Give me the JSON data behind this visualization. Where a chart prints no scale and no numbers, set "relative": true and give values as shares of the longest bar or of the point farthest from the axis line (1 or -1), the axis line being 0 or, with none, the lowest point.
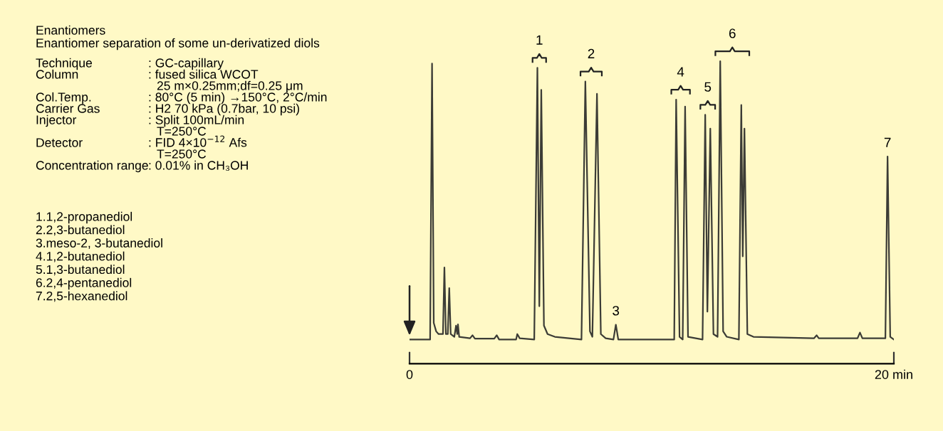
{
  "chart_data": {
    "type": "line",
    "relative": true,
    "title": "Enantiomers",
    "subtitle": "Enantiomer separation of some un-derivatized diols",
    "x": [
      0.0,
      0.85,
      0.93,
      1.0,
      1.1,
      1.2,
      1.38,
      1.44,
      1.5,
      1.58,
      1.64,
      1.7,
      1.85,
      1.92,
      1.97,
      2.0,
      2.05,
      2.5,
      2.6,
      2.7,
      3.5,
      3.6,
      3.7,
      4.4,
      4.45,
      4.55,
      5.15,
      5.28,
      5.36,
      5.44,
      5.55,
      5.7,
      6.0,
      7.1,
      7.26,
      7.45,
      7.55,
      7.74,
      7.9,
      8.1,
      8.42,
      8.52,
      8.62,
      10.93,
      11.01,
      11.15,
      11.28,
      11.38,
      11.5,
      12.1,
      12.21,
      12.3,
      12.42,
      12.55,
      12.72,
      12.83,
      12.95,
      13.1,
      13.6,
      13.7,
      13.76,
      13.83,
      13.95,
      14.2,
      16.7,
      16.81,
      16.9,
      18.5,
      18.6,
      18.7,
      19.65,
      19.74,
      19.85,
      20.0
    ],
    "series": [
      {
        "color": "#3c3c36",
        "values": [
          0.08,
          0.08,
          0.992,
          0.135,
          0.107,
          0.098,
          0.098,
          0.318,
          0.098,
          0.098,
          0.25,
          0.098,
          0.089,
          0.126,
          0.098,
          0.13,
          0.089,
          0.084,
          0.094,
          0.083,
          0.083,
          0.094,
          0.08,
          0.08,
          0.098,
          0.084,
          0.08,
          0.978,
          0.19,
          0.905,
          0.126,
          0.098,
          0.089,
          0.08,
          0.933,
          0.107,
          0.089,
          0.892,
          0.098,
          0.084,
          0.08,
          0.129,
          0.08,
          0.08,
          0.873,
          0.089,
          0.08,
          0.85,
          0.089,
          0.08,
          0.823,
          0.172,
          0.777,
          0.098,
          0.089,
          1.0,
          0.107,
          0.089,
          0.08,
          0.855,
          0.355,
          0.777,
          0.098,
          0.089,
          0.084,
          0.094,
          0.084,
          0.084,
          0.103,
          0.084,
          0.084,
          0.685,
          0.089,
          0.08
        ]
      }
    ],
    "xlim": [
      0,
      20
    ],
    "xticks": [
      0,
      {
        "value": 20,
        "label": "20 min"
      }
    ],
    "grid": false,
    "marker": "none",
    "line_style": "solid",
    "annotations": [
      "Technique : GC-capillary",
      "Column : fused silica WCOT",
      "25 m×0.25mm;df=0.25 μm",
      "Col.Temp. : 80°C (5 min) →150°C, 2°C/min",
      "Carrier Gas : H2 70 kPa (0.7bar, 10 psi)",
      "Injector : Split 100mL/min",
      "T=250°C",
      "Detector : FID 4×10$^{−12}$ Afs",
      "T=250°C",
      "Concentration range : 0.01% in CH₃OH",
      "1.1,2-propanediol",
      "2.2,3-butanediol",
      "3.meso-2, 3-butanediol",
      "4.1,2-butanediol",
      "5.1,3-butanediol",
      "6.2,4-pentanediol",
      "7.2,5-hexanediol",
      {
        "text": "1",
        "x": 5.28,
        "y": 0.978
      },
      {
        "text": "2",
        "x": 7.26,
        "y": 0.933
      },
      {
        "text": "3",
        "x": 8.52,
        "y": 0.129
      },
      {
        "text": "4",
        "x": 11.01,
        "y": 0.873
      },
      {
        "text": "5",
        "x": 12.21,
        "y": 0.823
      },
      {
        "text": "6",
        "x": 12.83,
        "y": 1.0
      },
      {
        "text": "7",
        "x": 19.74,
        "y": 0.685
      }
    ]
  }
}
